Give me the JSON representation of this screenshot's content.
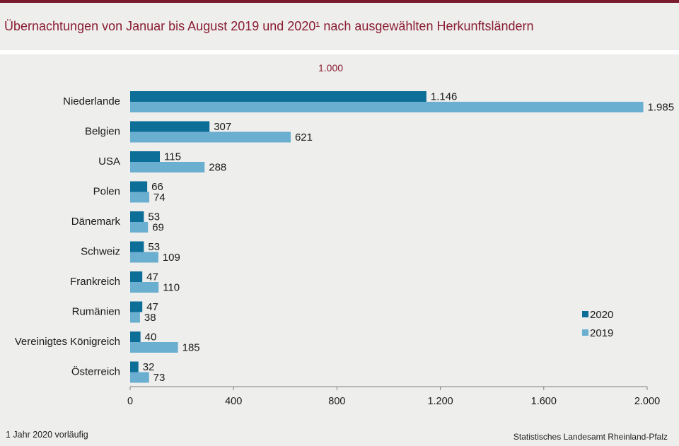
{
  "title": "Übernachtungen von Januar bis August 2019 und 2020¹ nach ausgewählten Herkunftsländern",
  "unit": "1.000",
  "footnote": "1 Jahr 2020 vorläufig",
  "source": "Statistisches Landesamt Rheinland-Pfalz",
  "chart_data": {
    "type": "bar",
    "orientation": "horizontal",
    "categories": [
      "Niederlande",
      "Belgien",
      "USA",
      "Polen",
      "Dänemark",
      "Schweiz",
      "Frankreich",
      "Rumänien",
      "Vereinigtes Königreich",
      "Österreich"
    ],
    "series": [
      {
        "name": "2020",
        "color": "#0d6e97",
        "values": [
          1146,
          307,
          115,
          66,
          53,
          53,
          47,
          47,
          40,
          32
        ],
        "labels": [
          "1.146",
          "307",
          "115",
          "66",
          "53",
          "53",
          "47",
          "47",
          "40",
          "32"
        ]
      },
      {
        "name": "2019",
        "color": "#6aaed0",
        "values": [
          1985,
          621,
          288,
          74,
          69,
          109,
          110,
          38,
          185,
          73
        ],
        "labels": [
          "1.985",
          "621",
          "288",
          "74",
          "69",
          "109",
          "110",
          "38",
          "185",
          "73"
        ]
      }
    ],
    "xlim": [
      0,
      2000
    ],
    "xticks": [
      0,
      400,
      800,
      1200,
      1600,
      2000
    ],
    "xtick_labels": [
      "0",
      "400",
      "800",
      "1.200",
      "1.600",
      "2.000"
    ],
    "grid": false,
    "legend_position": "bottom-right"
  }
}
